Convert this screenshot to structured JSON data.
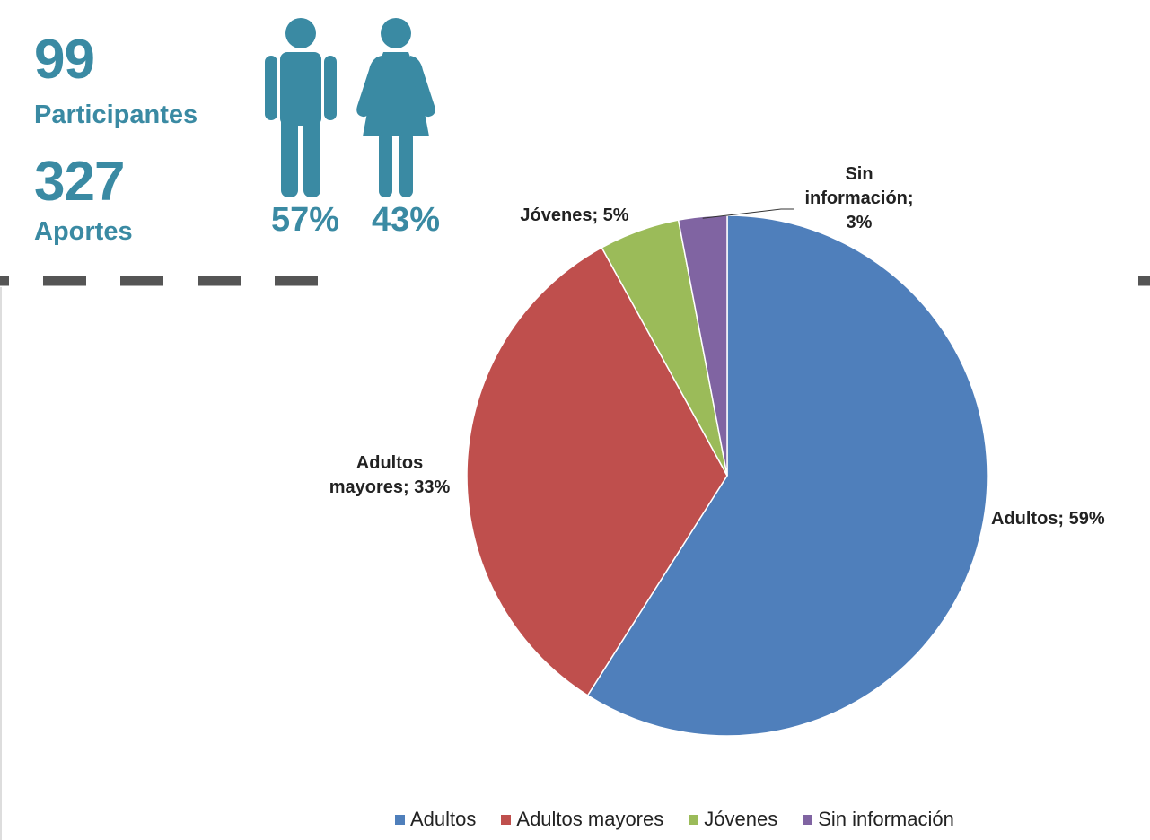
{
  "stats": {
    "participants_value": "99",
    "participants_label": "Participantes",
    "contributions_value": "327",
    "contributions_label": "Aportes",
    "male_pct": "57%",
    "female_pct": "43%",
    "accent_color": "#3a8aa3",
    "icons": [
      "male-person-icon",
      "female-person-icon"
    ]
  },
  "chart_data": {
    "type": "pie",
    "categories": [
      "Adultos",
      "Adultos mayores",
      "Jóvenes",
      "Sin información"
    ],
    "values": [
      59,
      33,
      5,
      3
    ],
    "colors": [
      "#4f7fbb",
      "#bf4f4d",
      "#9bbb59",
      "#8064a2"
    ],
    "labels": [
      [
        "Adultos; 59%"
      ],
      [
        "Adultos",
        "mayores; 33%"
      ],
      [
        "Jóvenes; 5%"
      ],
      [
        "Sin",
        "información;",
        "3%"
      ]
    ],
    "legend": {
      "position": "bottom",
      "entries": [
        "Adultos",
        "Adultos mayores",
        "Jóvenes",
        "Sin información"
      ]
    }
  }
}
